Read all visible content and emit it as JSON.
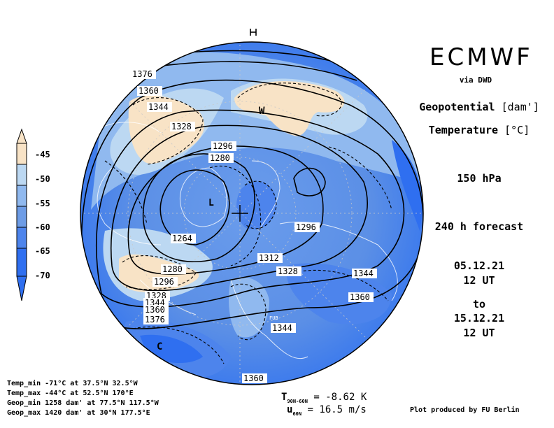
{
  "header": {
    "model": "ECMWF",
    "via": "via DWD",
    "field_line1": "Geopotential",
    "field_unit1": "[dam']",
    "field_line2": "Temperature",
    "field_unit2": "[°C]",
    "level": "150 hPa",
    "forecast": "240 h forecast",
    "start_date": "05.12.21",
    "start_time": "12 UT",
    "to": "to",
    "end_date": "15.12.21",
    "end_time": "12 UT"
  },
  "legend": {
    "labels": [
      "-45",
      "-50",
      "-55",
      "-60",
      "-65",
      "-70"
    ],
    "colors": [
      "#f8e3c6",
      "#bcd8f2",
      "#90b9ef",
      "#6d9ce6",
      "#4d84ec",
      "#2f6ff0"
    ]
  },
  "stats": {
    "temp_min": "Temp_min -71°C at 37.5°N 32.5°W",
    "temp_max": "Temp_max -44°C at 52.5°N 170°E",
    "geop_min": "Geop_min 1258 dam' at 77.5°N 117.5°W",
    "geop_max": "Geop_max 1420 dam' at 30°N 177.5°E"
  },
  "bottom": {
    "t_label": "T",
    "t_sub": "90N-60N",
    "t_value": "= -8.62 K",
    "u_label": "u",
    "u_sub": "60N",
    "u_value": "= 16.5 m/s",
    "credit": "Plot produced by FU Berlin"
  },
  "map_labels": {
    "contours": [
      "1376",
      "1360",
      "1344",
      "1328",
      "1296",
      "1280",
      "1264",
      "1280",
      "1296",
      "1328",
      "1344",
      "1360",
      "1376",
      "1296",
      "1312",
      "1328",
      "1344",
      "1360",
      "1344",
      "1360"
    ],
    "warm_marker": "W",
    "cold_marker": "C",
    "low_marker": "L",
    "station": "FUB"
  },
  "colors": {
    "disk_base": "#5b8fe6",
    "disk_edge": "#3b78ec"
  }
}
